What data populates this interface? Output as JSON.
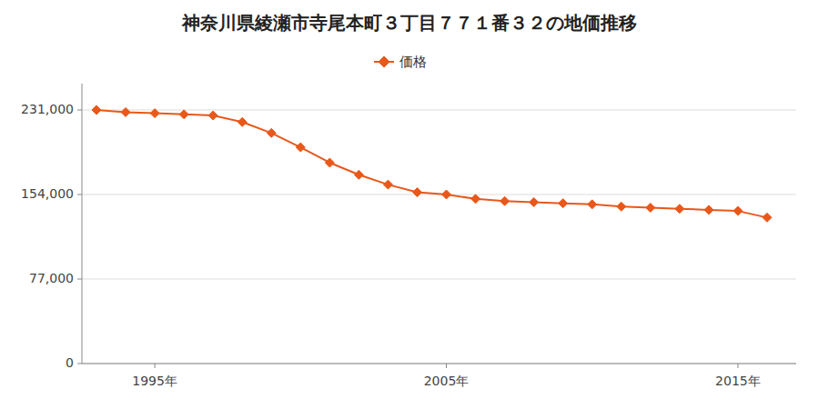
{
  "chart_data": {
    "type": "line",
    "title": "神奈川県綾瀬市寺尾本町３丁目７７１番３２の地価推移",
    "x": [
      1993,
      1994,
      1995,
      1996,
      1997,
      1998,
      1999,
      2000,
      2001,
      2002,
      2003,
      2004,
      2005,
      2006,
      2007,
      2008,
      2009,
      2010,
      2011,
      2012,
      2013,
      2014,
      2015,
      2016
    ],
    "series": [
      {
        "name": "価格",
        "color": "#E8581A",
        "marker": "diamond",
        "line_style": "solid",
        "values": [
          231000,
          229000,
          228000,
          227000,
          226000,
          220000,
          210000,
          197000,
          183000,
          172000,
          163000,
          156000,
          154000,
          150000,
          148000,
          147000,
          146000,
          145000,
          143000,
          142000,
          141000,
          140000,
          139000,
          133000
        ]
      }
    ],
    "xlim": [
      1992.5,
      2017.0
    ],
    "xticks": [
      {
        "value": 1995,
        "label": "1995年"
      },
      {
        "value": 2005,
        "label": "2005年"
      },
      {
        "value": 2015,
        "label": "2015年"
      }
    ],
    "ylim": [
      0,
      255000
    ],
    "yticks": [
      0,
      {
        "value": 77000,
        "label": "77,000"
      },
      {
        "value": 154000,
        "label": "154,000"
      },
      {
        "value": 231000,
        "label": "231,000"
      }
    ],
    "grid": true,
    "legend": "top"
  }
}
